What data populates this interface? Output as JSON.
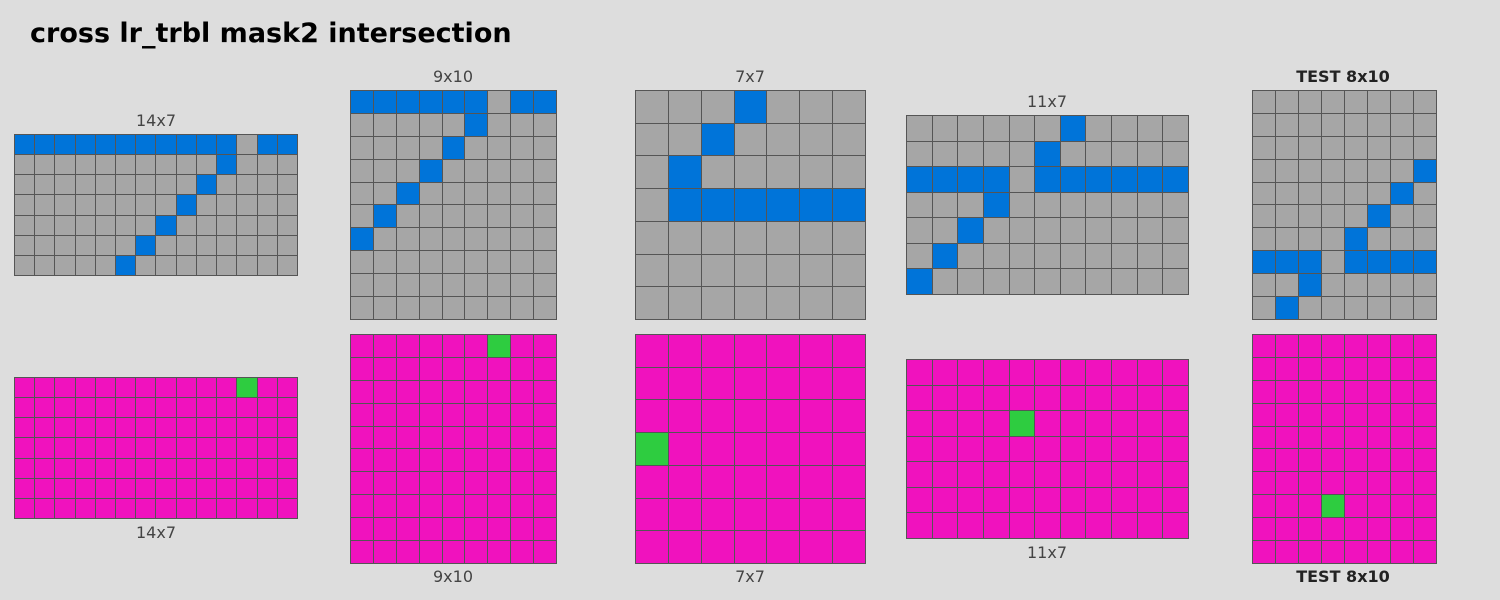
{
  "title": "cross lr_trbl mask2 intersection",
  "colors": {
    "background": "#dddddd",
    "grid_line": "#555555",
    "gray": "#a6a6a6",
    "blue": "#0074d9",
    "magenta": "#f012be",
    "green": "#2ecc40"
  },
  "pairs": [
    {
      "top_label": "14x7",
      "bottom_label": "14x7",
      "input": {
        "cols": 14,
        "rows": 7,
        "blue_cells": [
          [
            0,
            0
          ],
          [
            0,
            1
          ],
          [
            0,
            2
          ],
          [
            0,
            3
          ],
          [
            0,
            4
          ],
          [
            0,
            5
          ],
          [
            0,
            6
          ],
          [
            0,
            7
          ],
          [
            0,
            8
          ],
          [
            0,
            9
          ],
          [
            0,
            10
          ],
          [
            0,
            12
          ],
          [
            0,
            13
          ],
          [
            1,
            10
          ],
          [
            2,
            9
          ],
          [
            3,
            8
          ],
          [
            4,
            7
          ],
          [
            5,
            6
          ],
          [
            6,
            5
          ]
        ]
      },
      "output": {
        "cols": 14,
        "rows": 7,
        "green_cells": [
          [
            0,
            11
          ]
        ]
      }
    },
    {
      "top_label": "9x10",
      "bottom_label": "9x10",
      "input": {
        "cols": 9,
        "rows": 10,
        "blue_cells": [
          [
            0,
            0
          ],
          [
            0,
            1
          ],
          [
            0,
            2
          ],
          [
            0,
            3
          ],
          [
            0,
            4
          ],
          [
            0,
            5
          ],
          [
            0,
            7
          ],
          [
            0,
            8
          ],
          [
            1,
            5
          ],
          [
            2,
            4
          ],
          [
            3,
            3
          ],
          [
            4,
            2
          ],
          [
            5,
            1
          ],
          [
            6,
            0
          ]
        ]
      },
      "output": {
        "cols": 9,
        "rows": 10,
        "green_cells": [
          [
            0,
            6
          ]
        ]
      }
    },
    {
      "top_label": "7x7",
      "bottom_label": "7x7",
      "input": {
        "cols": 7,
        "rows": 7,
        "blue_cells": [
          [
            0,
            3
          ],
          [
            1,
            2
          ],
          [
            2,
            1
          ],
          [
            3,
            1
          ],
          [
            3,
            2
          ],
          [
            3,
            3
          ],
          [
            3,
            4
          ],
          [
            3,
            5
          ],
          [
            3,
            6
          ]
        ]
      },
      "output": {
        "cols": 7,
        "rows": 7,
        "green_cells": [
          [
            3,
            0
          ]
        ]
      }
    },
    {
      "top_label": "11x7",
      "bottom_label": "11x7",
      "input": {
        "cols": 11,
        "rows": 7,
        "blue_cells": [
          [
            0,
            6
          ],
          [
            1,
            5
          ],
          [
            2,
            0
          ],
          [
            2,
            1
          ],
          [
            2,
            2
          ],
          [
            2,
            3
          ],
          [
            2,
            5
          ],
          [
            2,
            6
          ],
          [
            2,
            7
          ],
          [
            2,
            8
          ],
          [
            2,
            9
          ],
          [
            2,
            10
          ],
          [
            3,
            3
          ],
          [
            4,
            2
          ],
          [
            5,
            1
          ],
          [
            6,
            0
          ]
        ]
      },
      "output": {
        "cols": 11,
        "rows": 7,
        "green_cells": [
          [
            2,
            4
          ]
        ]
      }
    },
    {
      "top_label": "TEST 8x10",
      "bottom_label": "TEST 8x10",
      "is_test": true,
      "input": {
        "cols": 8,
        "rows": 10,
        "blue_cells": [
          [
            3,
            7
          ],
          [
            4,
            6
          ],
          [
            5,
            5
          ],
          [
            6,
            4
          ],
          [
            7,
            0
          ],
          [
            7,
            1
          ],
          [
            7,
            2
          ],
          [
            7,
            4
          ],
          [
            7,
            5
          ],
          [
            7,
            6
          ],
          [
            7,
            7
          ],
          [
            8,
            2
          ],
          [
            9,
            1
          ]
        ]
      },
      "output": {
        "cols": 8,
        "rows": 10,
        "green_cells": [
          [
            7,
            3
          ]
        ]
      }
    }
  ]
}
